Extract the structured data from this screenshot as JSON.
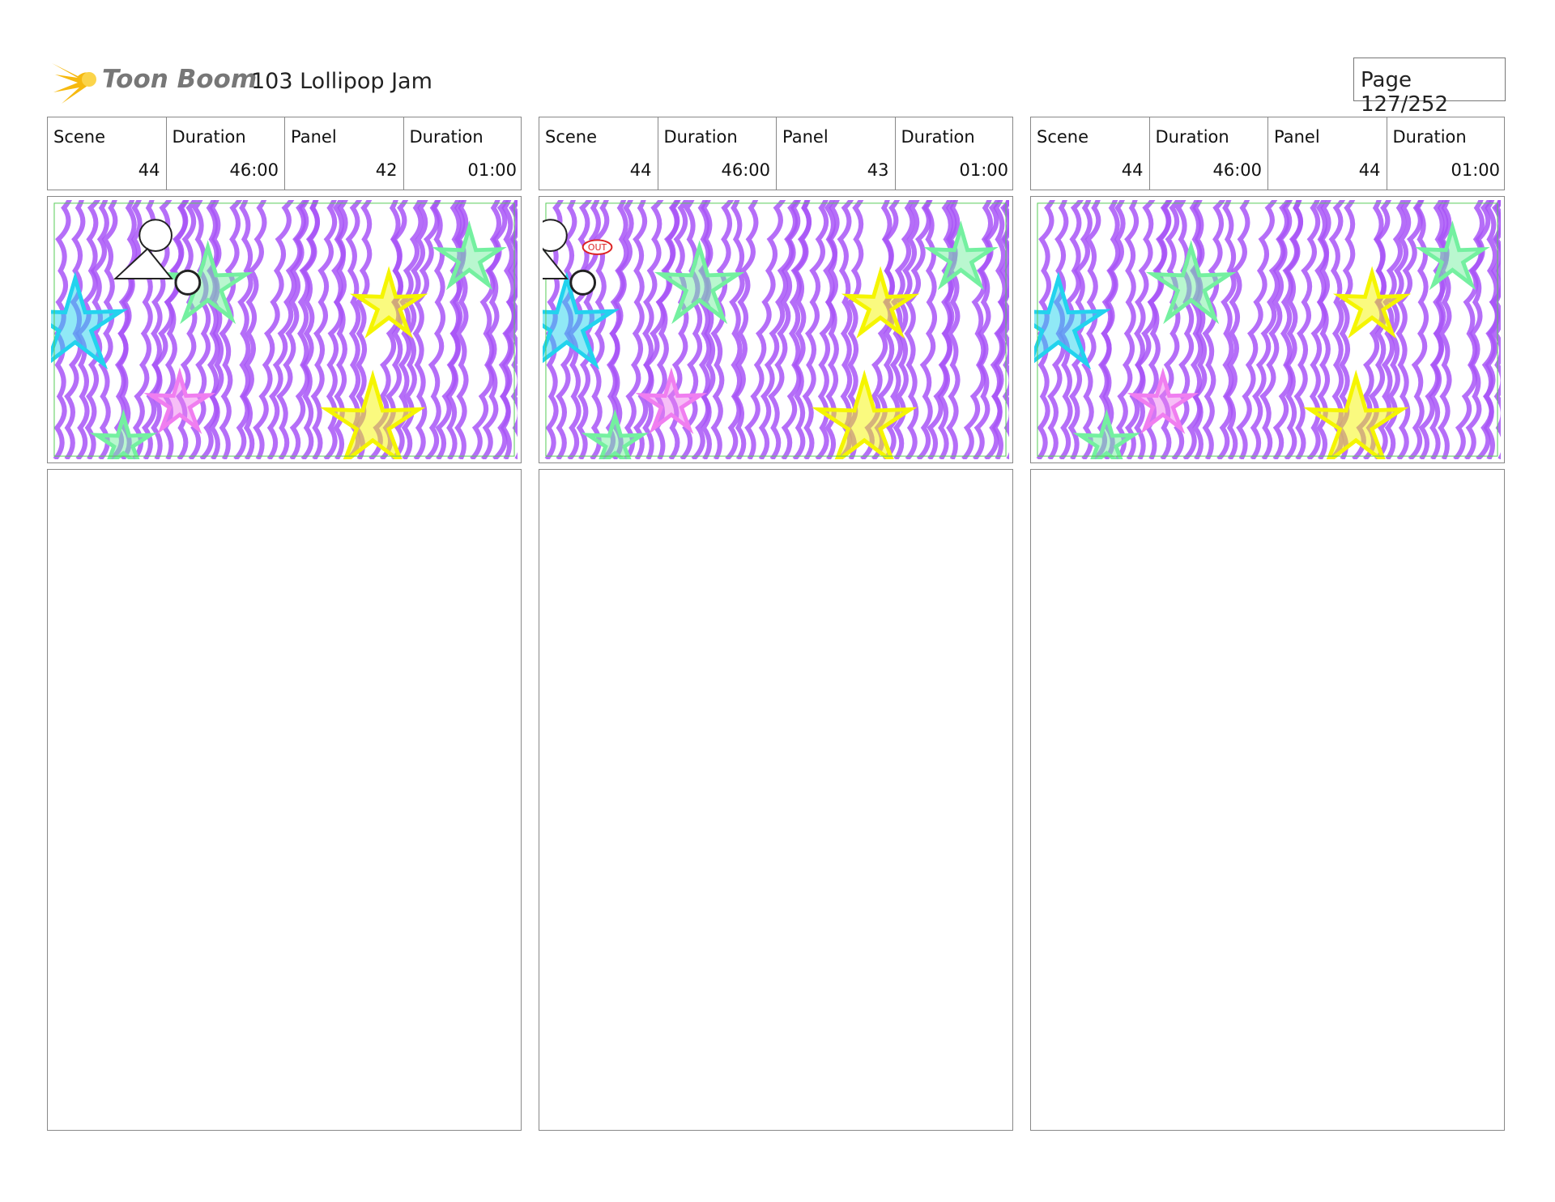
{
  "header": {
    "logo": "Toon Boom",
    "title": "103 Lollipop Jam",
    "page": "Page 127/252"
  },
  "panels": [
    {
      "scene_label": "Scene",
      "scene": "44",
      "duration_label": "Duration",
      "duration": "46:00",
      "panel_label": "Panel",
      "panel": "42",
      "panel_duration_label": "Duration",
      "panel_duration": "01:00"
    },
    {
      "scene_label": "Scene",
      "scene": "44",
      "duration_label": "Duration",
      "duration": "46:00",
      "panel_label": "Panel",
      "panel": "43",
      "panel_duration_label": "Duration",
      "panel_duration": "01:00",
      "annotation": "OUT"
    },
    {
      "scene_label": "Scene",
      "scene": "44",
      "duration_label": "Duration",
      "duration": "46:00",
      "panel_label": "Panel",
      "panel": "44",
      "panel_duration_label": "Duration",
      "panel_duration": "01:00"
    }
  ]
}
